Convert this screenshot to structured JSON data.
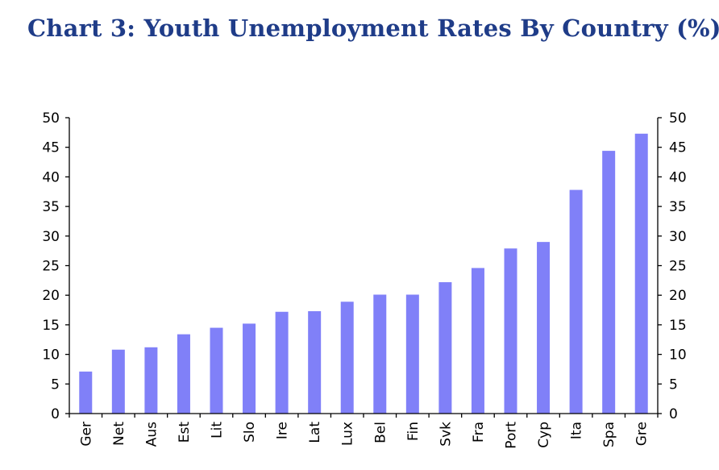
{
  "chart_data": {
    "type": "bar",
    "title": "Chart 3: Youth Unemployment Rates By Country (%)",
    "xlabel": "",
    "ylabel": "",
    "categories": [
      "Ger",
      "Net",
      "Aus",
      "Est",
      "Lit",
      "Slo",
      "Ire",
      "Lat",
      "Lux",
      "Bel",
      "Fin",
      "Svk",
      "Fra",
      "Port",
      "Cyp",
      "Ita",
      "Spa",
      "Gre"
    ],
    "values": [
      7.1,
      10.8,
      11.2,
      13.4,
      14.5,
      15.2,
      17.2,
      17.3,
      18.9,
      20.1,
      20.1,
      22.2,
      24.6,
      27.9,
      29.0,
      37.8,
      44.4,
      47.3
    ],
    "ylim": [
      0,
      50
    ],
    "yticks": [
      0,
      5,
      10,
      15,
      20,
      25,
      30,
      35,
      40,
      45,
      50
    ],
    "secondary_y_axis": true,
    "grid": false,
    "bar_color": "#8080f8",
    "title_color": "#1f3c88"
  }
}
